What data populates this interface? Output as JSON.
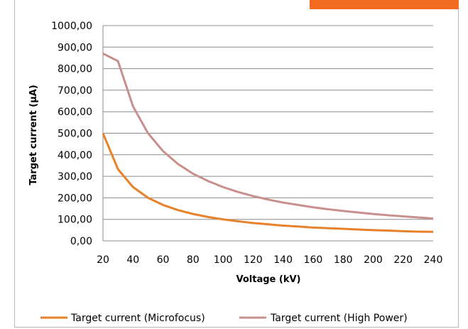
{
  "chart_data": {
    "type": "line",
    "title": "",
    "xlabel": "Voltage (kV)",
    "ylabel": "Target current (µA)",
    "x": [
      20,
      30,
      40,
      50,
      60,
      70,
      80,
      90,
      100,
      110,
      120,
      130,
      140,
      150,
      160,
      170,
      180,
      190,
      200,
      210,
      220,
      230,
      240
    ],
    "xlim": [
      20,
      240
    ],
    "ylim": [
      0,
      1000
    ],
    "x_ticks": [
      "20",
      "40",
      "60",
      "80",
      "100",
      "120",
      "140",
      "160",
      "180",
      "200",
      "220",
      "240"
    ],
    "y_ticks": [
      "0,00",
      "100,00",
      "200,00",
      "300,00",
      "400,00",
      "500,00",
      "600,00",
      "700,00",
      "800,00",
      "900,00",
      "1000,00"
    ],
    "grid": "horizontal",
    "legend_position": "bottom",
    "series": [
      {
        "name": "Target current (Microfocus)",
        "color": "#e8822a",
        "values": [
          500,
          333,
          250,
          200,
          167,
          143,
          125,
          111,
          100,
          91,
          83,
          77,
          71,
          67,
          62,
          59,
          56,
          53,
          50,
          48,
          45,
          43,
          42
        ]
      },
      {
        "name": "Target current (High Power)",
        "color": "#c8908c",
        "values": [
          870,
          835,
          625,
          500,
          417,
          357,
          312,
          278,
          250,
          227,
          208,
          192,
          178,
          167,
          156,
          147,
          139,
          132,
          125,
          119,
          114,
          109,
          104
        ]
      }
    ]
  }
}
